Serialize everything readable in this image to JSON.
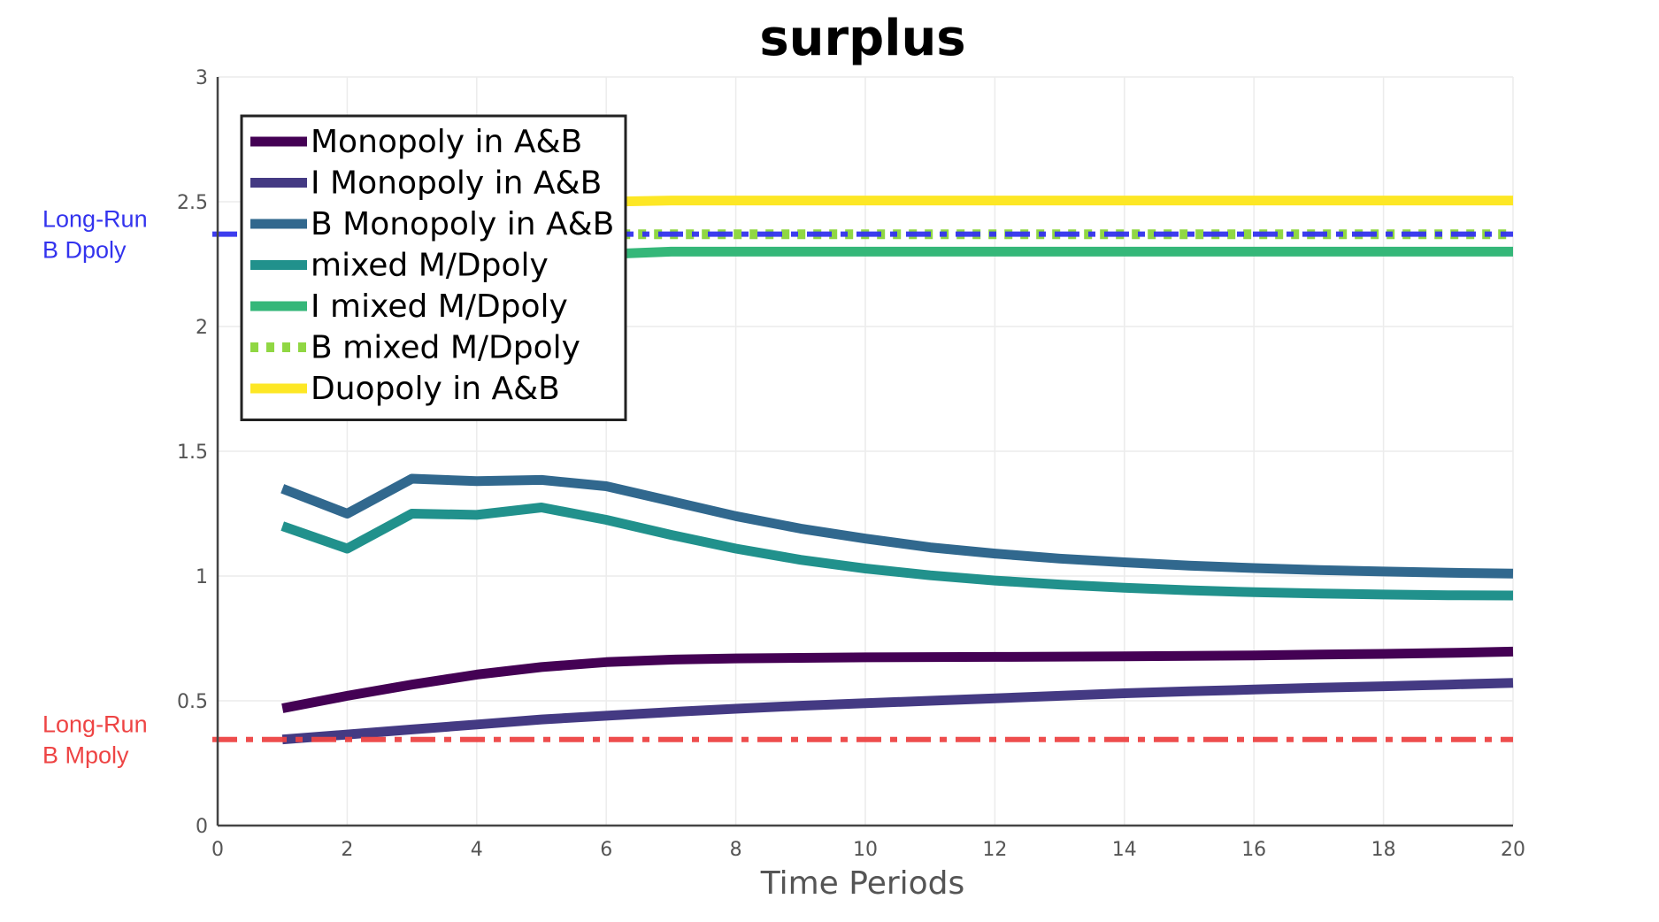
{
  "chart_data": {
    "type": "line",
    "title": "surplus",
    "xlabel": "Time Periods",
    "ylabel": "",
    "xlim": [
      0,
      20
    ],
    "ylim": [
      0,
      3
    ],
    "xticks": [
      0,
      2,
      4,
      6,
      8,
      10,
      12,
      14,
      16,
      18,
      20
    ],
    "yticks": [
      0,
      0.5,
      1,
      1.5,
      2,
      2.5,
      3
    ],
    "grid": true,
    "legend_position": "top-left",
    "x": [
      1,
      2,
      3,
      4,
      5,
      6,
      7,
      8,
      9,
      10,
      11,
      12,
      13,
      14,
      15,
      16,
      17,
      18,
      19,
      20
    ],
    "series": [
      {
        "name": "Monopoly in A&B",
        "color": "#440154",
        "dash": "solid",
        "values": [
          0.47,
          0.52,
          0.565,
          0.605,
          0.635,
          0.655,
          0.665,
          0.67,
          0.672,
          0.674,
          0.675,
          0.676,
          0.677,
          0.678,
          0.68,
          0.682,
          0.685,
          0.688,
          0.692,
          0.697
        ]
      },
      {
        "name": "I Monopoly in A&B",
        "color": "#443a83",
        "dash": "solid",
        "values": [
          0.345,
          0.365,
          0.385,
          0.405,
          0.425,
          0.44,
          0.455,
          0.468,
          0.48,
          0.49,
          0.5,
          0.51,
          0.52,
          0.53,
          0.538,
          0.545,
          0.552,
          0.558,
          0.565,
          0.572
        ]
      },
      {
        "name": "B Monopoly in A&B",
        "color": "#31688e",
        "dash": "solid",
        "values": [
          1.35,
          1.25,
          1.39,
          1.38,
          1.385,
          1.36,
          1.3,
          1.24,
          1.19,
          1.15,
          1.115,
          1.09,
          1.07,
          1.055,
          1.042,
          1.032,
          1.024,
          1.018,
          1.013,
          1.01
        ]
      },
      {
        "name": "mixed M/Dpoly",
        "color": "#21918c",
        "dash": "solid",
        "values": [
          1.2,
          1.11,
          1.25,
          1.245,
          1.275,
          1.225,
          1.165,
          1.11,
          1.065,
          1.03,
          1.003,
          0.982,
          0.966,
          0.953,
          0.943,
          0.935,
          0.93,
          0.926,
          0.923,
          0.922
        ]
      },
      {
        "name": "I mixed M/Dpoly",
        "color": "#35b779",
        "dash": "solid",
        "values": [
          null,
          null,
          null,
          null,
          null,
          2.29,
          2.3,
          2.3,
          2.3,
          2.3,
          2.3,
          2.3,
          2.3,
          2.3,
          2.3,
          2.3,
          2.3,
          2.3,
          2.3,
          2.3
        ]
      },
      {
        "name": "B mixed M/Dpoly",
        "color": "#90d743",
        "dash": "dotted",
        "values": [
          null,
          null,
          null,
          null,
          null,
          2.37,
          2.37,
          2.37,
          2.37,
          2.37,
          2.37,
          2.37,
          2.37,
          2.37,
          2.37,
          2.37,
          2.37,
          2.37,
          2.37,
          2.37
        ]
      },
      {
        "name": "Duopoly in A&B",
        "color": "#fde725",
        "dash": "solid",
        "values": [
          null,
          null,
          null,
          null,
          null,
          2.5,
          2.505,
          2.505,
          2.505,
          2.505,
          2.505,
          2.505,
          2.505,
          2.505,
          2.505,
          2.505,
          2.505,
          2.505,
          2.505,
          2.505
        ]
      }
    ],
    "reference_lines": [
      {
        "label": [
          "Long-Run",
          "B Dpoly"
        ],
        "value": 2.37,
        "color": "#3333ee",
        "dash": "dashdot"
      },
      {
        "label": [
          "Long-Run",
          "B Mpoly"
        ],
        "value": 0.345,
        "color": "#ee4444",
        "dash": "dashdot"
      }
    ]
  }
}
